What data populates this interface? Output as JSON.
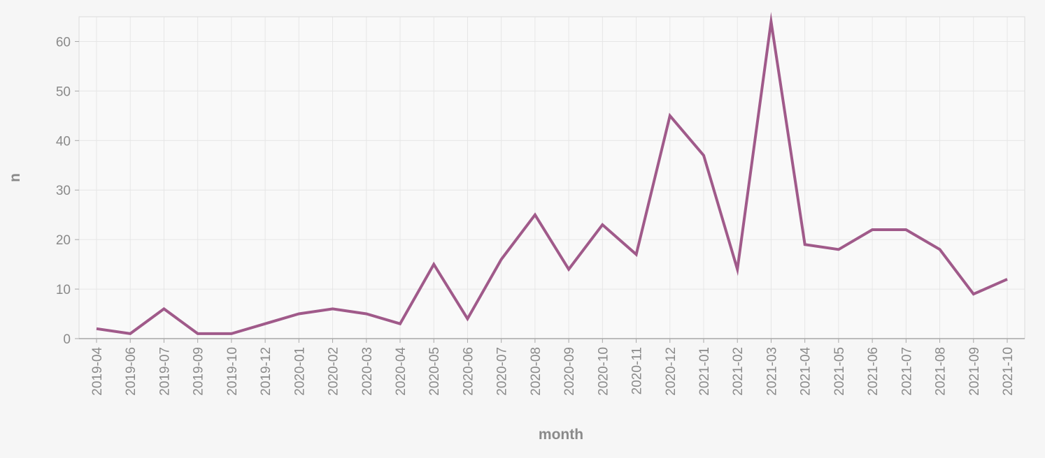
{
  "chart_data": {
    "type": "line",
    "xlabel": "month",
    "ylabel": "n",
    "categories": [
      "2019-04",
      "2019-06",
      "2019-07",
      "2019-09",
      "2019-10",
      "2019-12",
      "2020-01",
      "2020-02",
      "2020-03",
      "2020-04",
      "2020-05",
      "2020-06",
      "2020-07",
      "2020-08",
      "2020-09",
      "2020-10",
      "2020-11",
      "2020-12",
      "2021-01",
      "2021-02",
      "2021-03",
      "2021-04",
      "2021-05",
      "2021-06",
      "2021-07",
      "2021-08",
      "2021-09",
      "2021-10"
    ],
    "series": [
      {
        "values": [
          2,
          1,
          6,
          1,
          1,
          3,
          5,
          6,
          5,
          3,
          15,
          4,
          16,
          25,
          14,
          23,
          17,
          45,
          37,
          14,
          64,
          19,
          18,
          22,
          22,
          18,
          9,
          12
        ]
      }
    ],
    "ylim": [
      0,
      65
    ],
    "yticks": [
      0,
      10,
      20,
      30,
      40,
      50,
      60
    ],
    "grid": true,
    "legend": "none",
    "colors": {
      "line": "#a05a8a",
      "background": "#f6f6f6",
      "plot_background": "#f9f9f9",
      "grid": "#e6e6e6",
      "axis": "#a8a8a8",
      "text": "#8a8a8a"
    }
  }
}
